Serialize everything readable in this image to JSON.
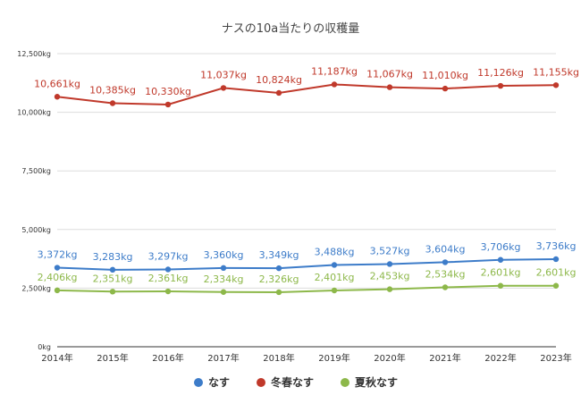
{
  "chart_data": {
    "type": "line",
    "title": "ナスの10a当たりの収穫量",
    "categories": [
      "2014年",
      "2015年",
      "2016年",
      "2017年",
      "2018年",
      "2019年",
      "2020年",
      "2021年",
      "2022年",
      "2023年"
    ],
    "ylim": [
      0,
      12500
    ],
    "yticks": [
      {
        "value": 0,
        "label": "0kg"
      },
      {
        "value": 2500,
        "label": "2,500kg"
      },
      {
        "value": 5000,
        "label": "5,000kg"
      },
      {
        "value": 7500,
        "label": "7,500kg"
      },
      {
        "value": 10000,
        "label": "10,000kg"
      },
      {
        "value": 12500,
        "label": "12,500kg"
      }
    ],
    "grid": true,
    "legend_position": "bottom",
    "series": [
      {
        "name": "なす",
        "color": "#3d7cc9",
        "values": [
          3372,
          3283,
          3297,
          3360,
          3349,
          3488,
          3527,
          3604,
          3706,
          3736
        ],
        "labels": [
          "3,372kg",
          "3,283kg",
          "3,297kg",
          "3,360kg",
          "3,349kg",
          "3,488kg",
          "3,527kg",
          "3,604kg",
          "3,706kg",
          "3,736kg"
        ]
      },
      {
        "name": "冬春なす",
        "color": "#c0392b",
        "values": [
          10661,
          10385,
          10330,
          11037,
          10824,
          11187,
          11067,
          11010,
          11126,
          11155
        ],
        "labels": [
          "10,661kg",
          "10,385kg",
          "10,330kg",
          "11,037kg",
          "10,824kg",
          "11,187kg",
          "11,067kg",
          "11,010kg",
          "11,126kg",
          "11,155kg"
        ]
      },
      {
        "name": "夏秋なす",
        "color": "#8db84a",
        "values": [
          2406,
          2351,
          2361,
          2334,
          2326,
          2401,
          2453,
          2534,
          2601,
          2601
        ],
        "labels": [
          "2,406kg",
          "2,351kg",
          "2,361kg",
          "2,334kg",
          "2,326kg",
          "2,401kg",
          "2,453kg",
          "2,534kg",
          "2,601kg",
          "2,601kg"
        ]
      }
    ]
  }
}
